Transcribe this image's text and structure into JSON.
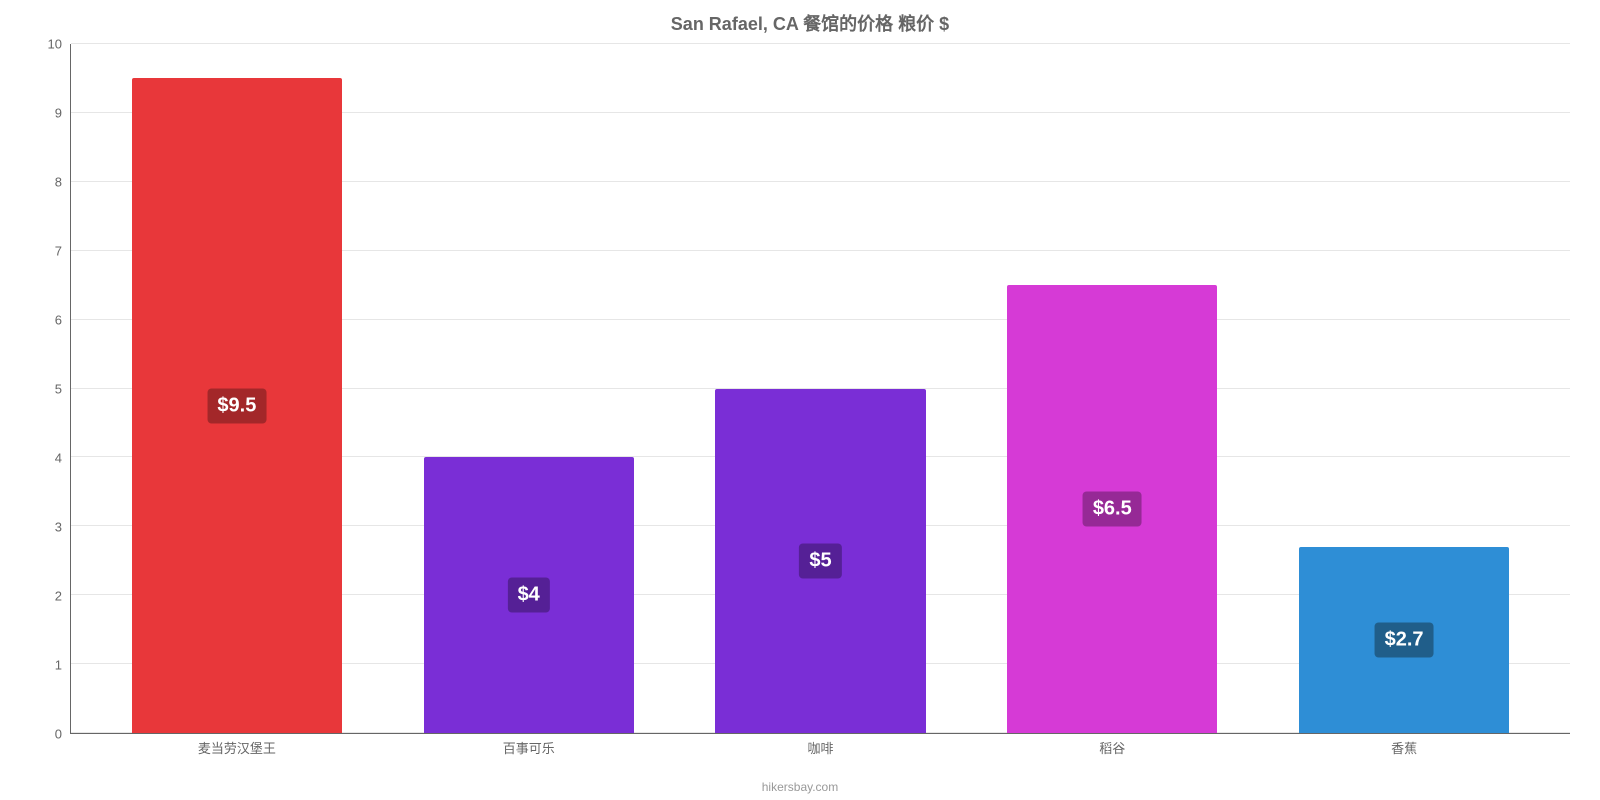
{
  "chart": {
    "type": "bar",
    "title": "San Rafael, CA 餐馆的价格 粮价 $",
    "title_fontsize": 18,
    "title_color": "#666666",
    "background_color": "#ffffff",
    "ylim": [
      0,
      10
    ],
    "yticks": [
      0,
      1,
      2,
      3,
      4,
      5,
      6,
      7,
      8,
      9,
      10
    ],
    "ytick_fontsize": 13,
    "ytick_color": "#666666",
    "grid_color": "#e6e6e6",
    "axis_color": "#666666",
    "bar_width_pct": 72,
    "categories": [
      "麦当劳汉堡王",
      "百事可乐",
      "咖啡",
      "稻谷",
      "香蕉"
    ],
    "values": [
      9.5,
      4,
      5,
      6.5,
      2.7
    ],
    "value_labels": [
      "$9.5",
      "$4",
      "$5",
      "$6.5",
      "$2.7"
    ],
    "bar_colors": [
      "#e8373a",
      "#7a2ed6",
      "#7a2ed6",
      "#d63ad6",
      "#2e8ed6"
    ],
    "label_bg_colors": [
      "#a32729",
      "#552096",
      "#552096",
      "#962996",
      "#205e8a"
    ],
    "label_fontsize": 20,
    "label_color": "#ffffff",
    "xlabel_fontsize": 13,
    "xlabel_color": "#666666",
    "attribution": "hikersbay.com",
    "attribution_color": "#999999",
    "attribution_fontsize": 12
  }
}
